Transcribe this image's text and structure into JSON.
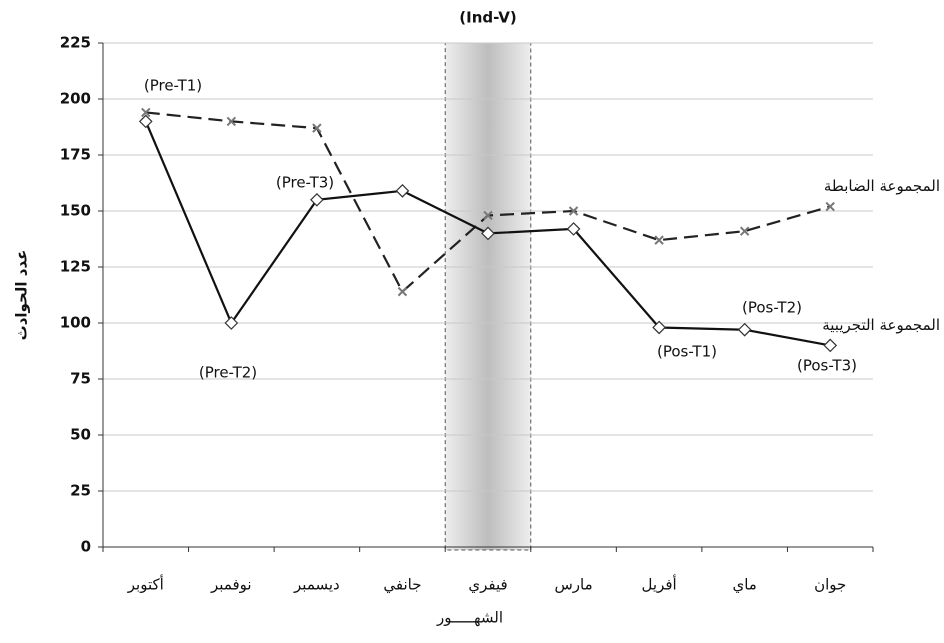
{
  "chart_data": {
    "type": "line",
    "categories": [
      "أكتوبر",
      "نوفمبر",
      "ديسمبر",
      "جانفي",
      "فيفري",
      "مارس",
      "أفريل",
      "ماي",
      "جوان"
    ],
    "series": [
      {
        "name": "المجموعة الضابطة",
        "color": "#222222",
        "style": "dashed",
        "marker": "x",
        "values": [
          194,
          190,
          187,
          114,
          148,
          150,
          137,
          141,
          152
        ]
      },
      {
        "name": "المجموعة التجريبية",
        "color": "#111111",
        "style": "solid",
        "marker": "diamond",
        "values": [
          190,
          100,
          155,
          159,
          140,
          142,
          98,
          97,
          90
        ]
      }
    ],
    "ylim": [
      0,
      225
    ],
    "yticks": [
      0,
      25,
      50,
      75,
      100,
      125,
      150,
      175,
      200,
      225
    ],
    "grid": true,
    "xlabel": "الشهـــــور",
    "ylabel": "عدد الحوادث",
    "highlight": {
      "label": "(Ind-V)",
      "category": "فيفري"
    },
    "annotations": [
      "(Pre-T1)",
      "(Pre-T2)",
      "(Pre-T3)",
      "(Pos-T1)",
      "(Pos-T2)",
      "(Pos-T3)"
    ]
  }
}
